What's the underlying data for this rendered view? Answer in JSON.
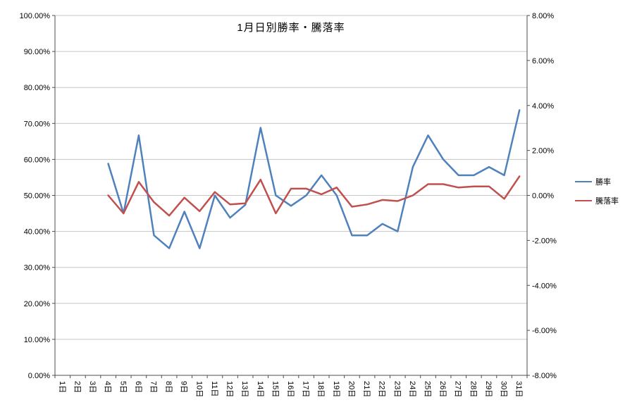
{
  "chart_data": {
    "type": "line",
    "title": "1月日別勝率・騰落率",
    "grid": true,
    "legend_position": "right",
    "categories": [
      "1日",
      "2日",
      "3日",
      "4日",
      "5日",
      "6日",
      "7日",
      "8日",
      "9日",
      "10日",
      "11日",
      "12日",
      "13日",
      "14日",
      "15日",
      "16日",
      "17日",
      "18日",
      "19日",
      "20日",
      "21日",
      "22日",
      "23日",
      "24日",
      "25日",
      "26日",
      "27日",
      "28日",
      "29日",
      "30日",
      "31日"
    ],
    "series": [
      {
        "name": "勝率",
        "axis": "left",
        "color": "#4F81BD",
        "values": [
          null,
          null,
          null,
          58.8,
          45.0,
          66.7,
          38.9,
          35.3,
          45.5,
          35.3,
          50.0,
          43.8,
          47.4,
          68.8,
          50.0,
          47.1,
          50.0,
          55.6,
          50.0,
          38.9,
          38.9,
          42.1,
          40.0,
          57.9,
          66.7,
          60.0,
          55.6,
          55.6,
          57.9,
          55.6,
          73.7
        ]
      },
      {
        "name": "騰落率",
        "axis": "right",
        "color": "#C0504D",
        "values": [
          null,
          null,
          null,
          0.0,
          -0.8,
          0.6,
          -0.3,
          -0.9,
          -0.1,
          -0.7,
          0.15,
          -0.4,
          -0.35,
          0.7,
          -0.8,
          0.3,
          0.3,
          0.05,
          0.35,
          -0.5,
          -0.4,
          -0.2,
          -0.25,
          0.0,
          0.5,
          0.5,
          0.35,
          0.4,
          0.4,
          -0.15,
          0.85
        ]
      }
    ],
    "left_axis": {
      "min": 0,
      "max": 100,
      "step": 10,
      "tick_labels": [
        "0.00%",
        "10.00%",
        "20.00%",
        "30.00%",
        "40.00%",
        "50.00%",
        "60.00%",
        "70.00%",
        "80.00%",
        "90.00%",
        "100.00%"
      ]
    },
    "right_axis": {
      "min": -8,
      "max": 8,
      "step": 2,
      "tick_labels": [
        "-8.00%",
        "-6.00%",
        "-4.00%",
        "-2.00%",
        "0.00%",
        "2.00%",
        "4.00%",
        "6.00%",
        "8.00%"
      ]
    },
    "colors": {
      "gridline": "#C6C6C6",
      "axis": "#4D4D4D",
      "text": "#000000"
    }
  }
}
